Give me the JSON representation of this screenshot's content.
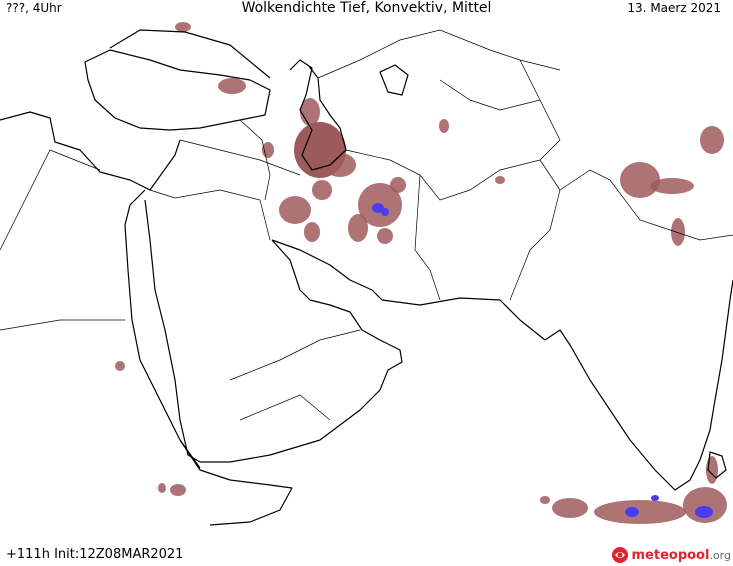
{
  "header": {
    "left": "???, 4Uhr",
    "title": "Wolkendichte   Tief, Konvektiv, Mittel",
    "date": "13. Maerz 2021"
  },
  "footer": {
    "run": "+111h  Init:12Z08MAR2021"
  },
  "logo": {
    "name": "meteopool",
    "domain": ".org"
  },
  "colors": {
    "cloud": "#a05a5c",
    "cloud_dense": "#8a3d40",
    "convective": "#4a3cf0",
    "coast": "#000000",
    "border": "#000000",
    "background": "#ffffff",
    "logo_red": "#e0242e"
  }
}
